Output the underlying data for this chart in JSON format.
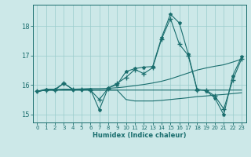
{
  "xlabel": "Humidex (Indice chaleur)",
  "bg_color": "#cce8e8",
  "grid_color": "#99cccc",
  "line_color": "#1a6e6e",
  "xlim": [
    -0.5,
    23.5
  ],
  "ylim": [
    14.72,
    18.72
  ],
  "yticks": [
    15,
    16,
    17,
    18
  ],
  "xticks": [
    0,
    1,
    2,
    3,
    4,
    5,
    6,
    7,
    8,
    9,
    10,
    11,
    12,
    13,
    14,
    15,
    16,
    17,
    18,
    19,
    20,
    21,
    22,
    23
  ],
  "series": [
    {
      "x": [
        0,
        1,
        2,
        3,
        4,
        5,
        6,
        7,
        8,
        9,
        10,
        11,
        12,
        13,
        14,
        15,
        16,
        17,
        18,
        19,
        20,
        21,
        22,
        23
      ],
      "y": [
        15.78,
        15.85,
        15.85,
        16.05,
        15.85,
        15.85,
        15.85,
        15.15,
        15.9,
        16.0,
        16.45,
        16.55,
        16.6,
        16.62,
        17.6,
        18.4,
        18.1,
        17.05,
        15.85,
        15.8,
        15.55,
        14.98,
        16.3,
        16.95
      ],
      "marker": "*",
      "markersize": 3
    },
    {
      "x": [
        0,
        1,
        2,
        3,
        4,
        5,
        6,
        7,
        8,
        9,
        10,
        11,
        12,
        13,
        14,
        15,
        16,
        17,
        18,
        19,
        20,
        21,
        22,
        23
      ],
      "y": [
        15.76,
        15.83,
        15.84,
        15.85,
        15.85,
        15.86,
        15.87,
        15.87,
        15.88,
        15.9,
        15.93,
        15.97,
        16.01,
        16.06,
        16.12,
        16.2,
        16.3,
        16.4,
        16.5,
        16.57,
        16.63,
        16.68,
        16.77,
        16.87
      ],
      "marker": null,
      "markersize": 0
    },
    {
      "x": [
        0,
        1,
        2,
        3,
        4,
        5,
        6,
        7,
        8,
        9,
        10,
        11,
        12,
        13,
        14,
        15,
        16,
        17,
        18,
        19,
        20,
        21,
        22,
        23
      ],
      "y": [
        15.78,
        15.82,
        15.82,
        15.82,
        15.82,
        15.82,
        15.82,
        15.82,
        15.82,
        15.82,
        15.82,
        15.82,
        15.82,
        15.82,
        15.82,
        15.82,
        15.82,
        15.82,
        15.82,
        15.82,
        15.82,
        15.82,
        15.82,
        15.82
      ],
      "marker": null,
      "markersize": 0
    },
    {
      "x": [
        0,
        1,
        2,
        3,
        4,
        5,
        6,
        7,
        8,
        9,
        10,
        11,
        12,
        13,
        14,
        15,
        16,
        17,
        18,
        19,
        20,
        21,
        22,
        23
      ],
      "y": [
        15.78,
        15.82,
        15.82,
        16.05,
        15.85,
        15.85,
        15.82,
        15.5,
        15.88,
        16.05,
        16.25,
        16.52,
        16.38,
        16.58,
        17.55,
        18.25,
        17.38,
        17.0,
        15.82,
        15.82,
        15.62,
        15.18,
        16.15,
        16.88
      ],
      "marker": "+",
      "markersize": 4
    },
    {
      "x": [
        0,
        1,
        2,
        3,
        4,
        5,
        6,
        7,
        8,
        9,
        10,
        11,
        12,
        13,
        14,
        15,
        16,
        17,
        18,
        19,
        20,
        21,
        22,
        23
      ],
      "y": [
        15.78,
        15.82,
        15.82,
        15.82,
        15.82,
        15.82,
        15.82,
        15.82,
        15.82,
        15.82,
        15.5,
        15.45,
        15.45,
        15.45,
        15.47,
        15.5,
        15.53,
        15.56,
        15.6,
        15.62,
        15.65,
        15.67,
        15.7,
        15.73
      ],
      "marker": null,
      "markersize": 0
    }
  ]
}
